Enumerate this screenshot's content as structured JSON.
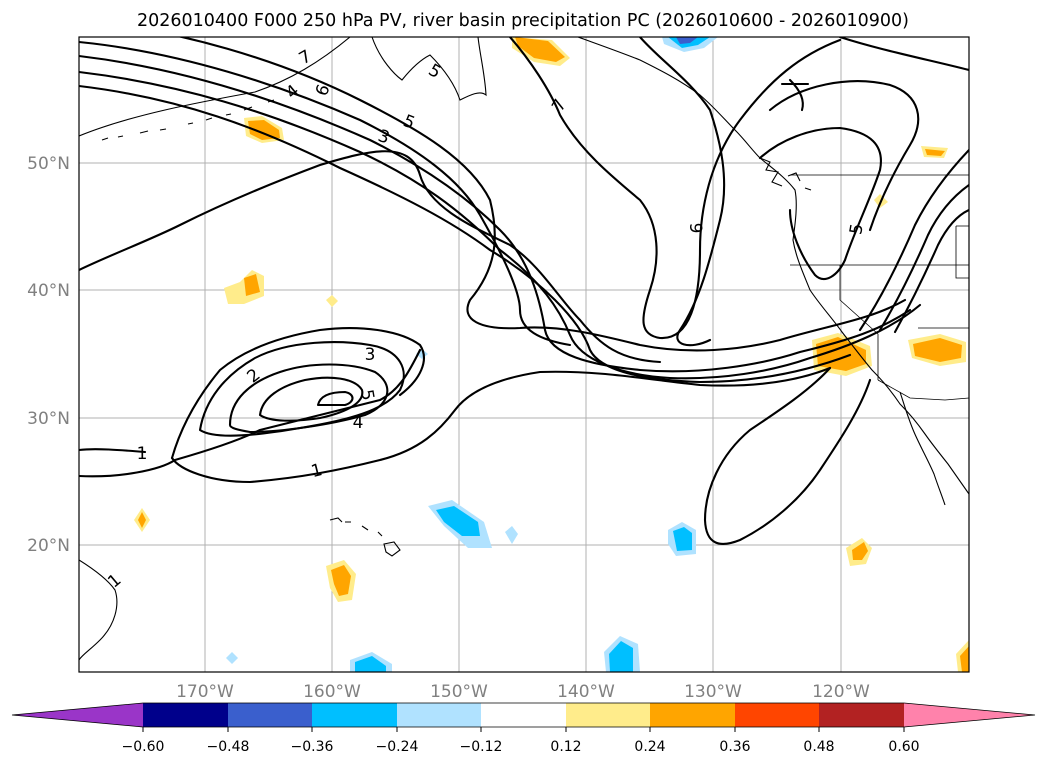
{
  "title": "2026010400 F000 250 hPa PV, river basin precipitation PC (2026010600 - 2026010900)",
  "map": {
    "lat_labels": [
      "50°N",
      "40°N",
      "30°N",
      "20°N"
    ],
    "lon_labels": [
      "170°W",
      "160°W",
      "150°W",
      "140°W",
      "130°W",
      "120°W"
    ],
    "contour_labels": [
      "1",
      "1",
      "1",
      "2",
      "3",
      "3",
      "4",
      "5",
      "5",
      "5",
      "6",
      "7",
      "7",
      "9",
      "4",
      "5"
    ]
  },
  "colorbar": {
    "ticks": [
      "−0.60",
      "−0.48",
      "−0.36",
      "−0.24",
      "−0.12",
      "0.12",
      "0.24",
      "0.36",
      "0.48",
      "0.60"
    ],
    "colors": [
      "#9a35c8",
      "#00008b",
      "#3a5fcd",
      "#00bfff",
      "#b0e2ff",
      "#ffffff",
      "#ffec8b",
      "#ffa500",
      "#ff4500",
      "#b22222",
      "#ff82ab"
    ]
  }
}
